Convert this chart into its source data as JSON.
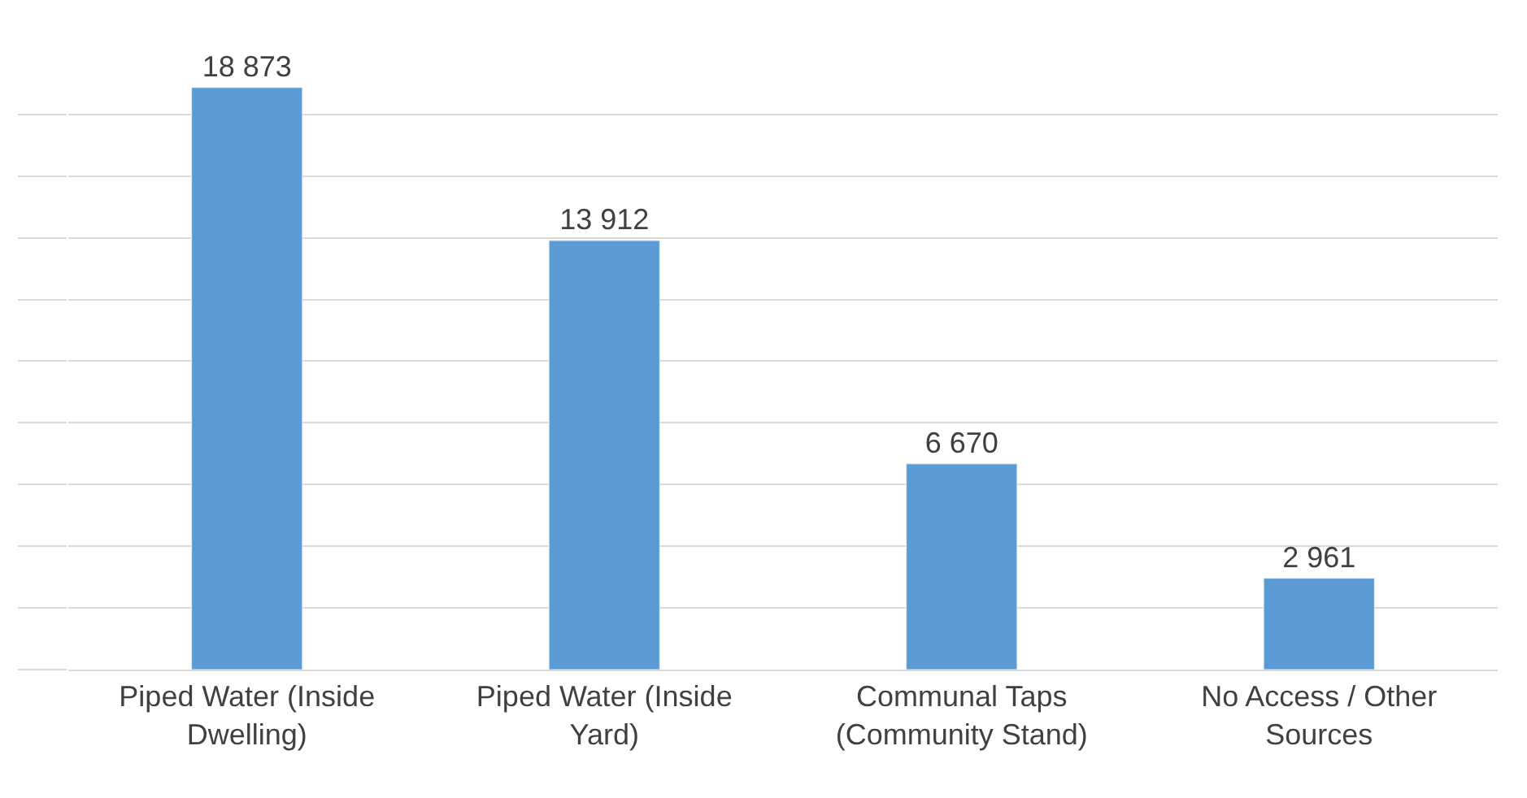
{
  "chart_data": {
    "type": "bar",
    "categories": [
      "Piped Water (Inside Dwelling)",
      "Piped Water (Inside Yard)",
      "Communal Taps (Community Stand)",
      "No Access / Other Sources"
    ],
    "values": [
      18873,
      13912,
      6670,
      2961
    ],
    "value_labels": [
      "18 873",
      "13 912",
      "6 670",
      "2 961"
    ],
    "color": "#5b9bd5",
    "tick_labels": "x",
    "grid": "y"
  }
}
